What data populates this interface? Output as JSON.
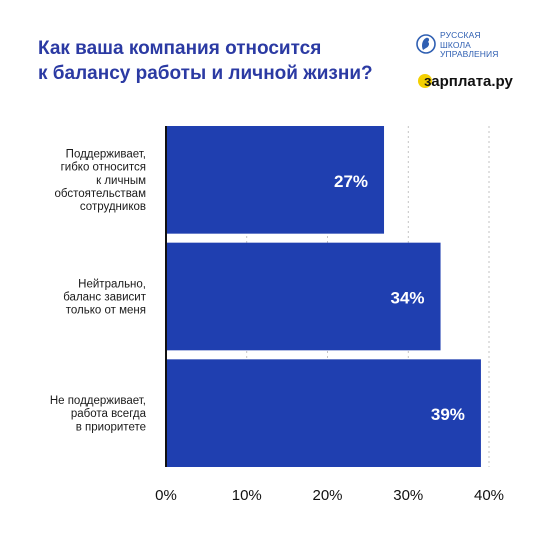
{
  "header": {
    "title_lines": [
      "Как ваша компания относится",
      "к балансу работы и личной жизни?"
    ]
  },
  "logos": {
    "rshu_lines": [
      "РУССКАЯ",
      "ШКОЛА",
      "УПРАВЛЕНИЯ"
    ],
    "rshu_color": "#2f5fb2",
    "zarplata_text": "зарплата.ру",
    "zarplata_accent": "#f4d000"
  },
  "chart_data": {
    "type": "bar",
    "orientation": "horizontal",
    "categories": [
      [
        "Поддерживает,",
        "гибко относится",
        "к личным",
        "обстоятельствам",
        "сотрудников"
      ],
      [
        "Нейтрально,",
        "баланс зависит",
        "только от меня"
      ],
      [
        "Не поддерживает,",
        "работа всегда",
        "в приоритете"
      ]
    ],
    "values": [
      27,
      34,
      39
    ],
    "data_labels": [
      "27%",
      "34%",
      "39%"
    ],
    "xlim": [
      0,
      40
    ],
    "xticks": [
      0,
      10,
      20,
      30,
      40
    ],
    "xtick_labels": [
      "0%",
      "10%",
      "20%",
      "30%",
      "40%"
    ],
    "grid": "vertical",
    "bar_color": "#1f3fb0",
    "title": "",
    "xlabel": "",
    "ylabel": ""
  }
}
